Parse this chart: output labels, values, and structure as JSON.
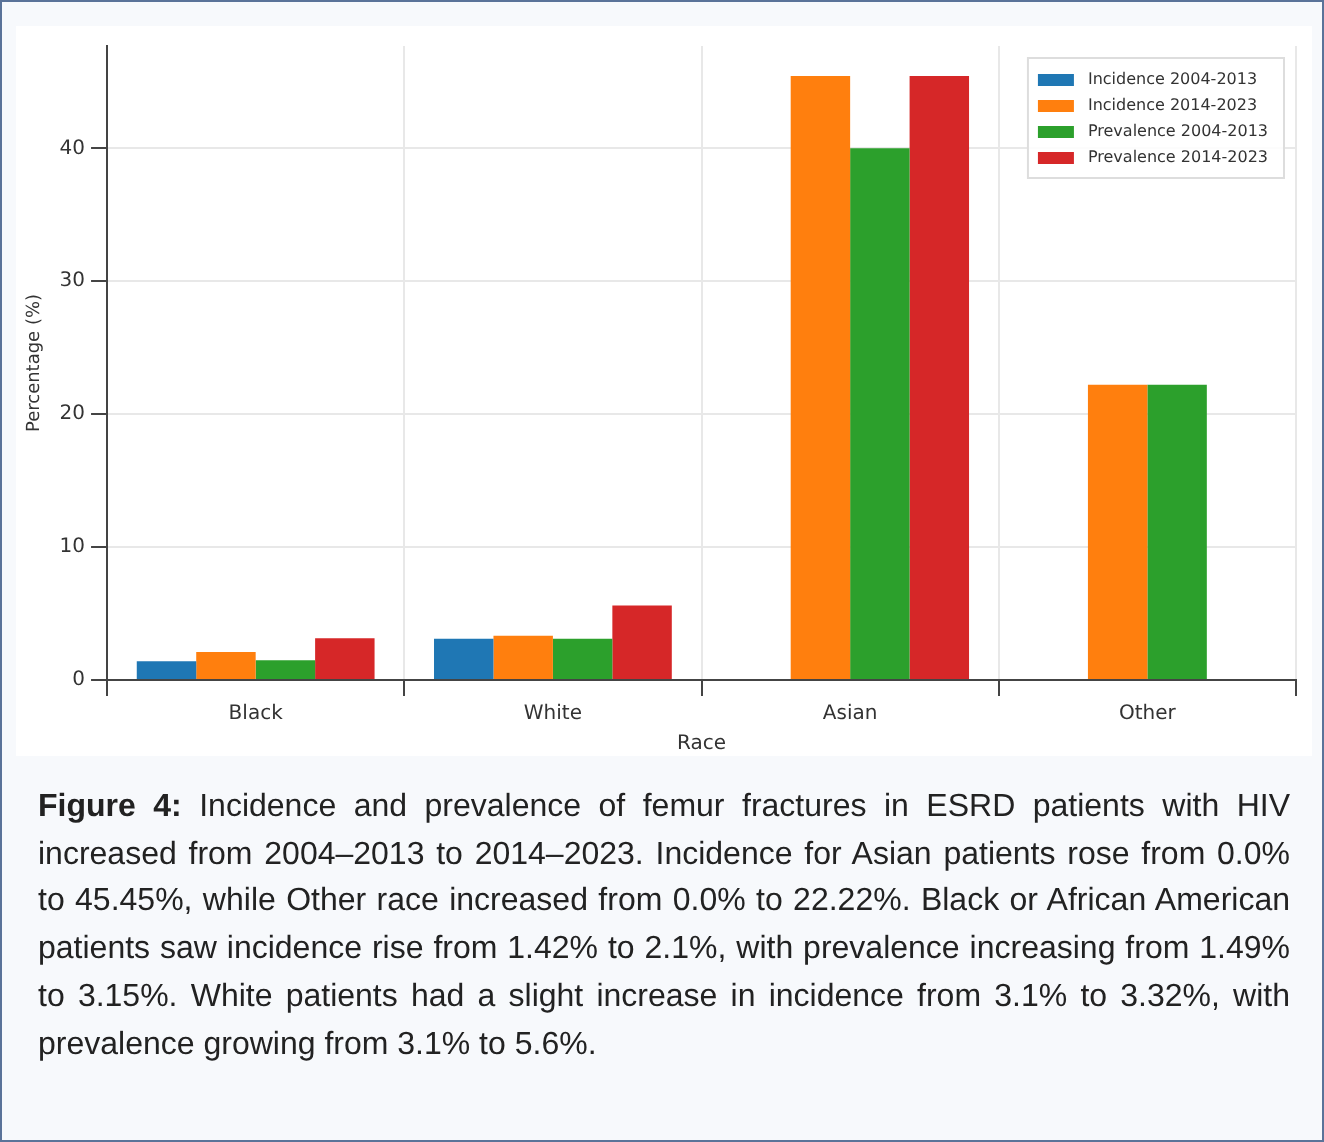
{
  "chart_data": {
    "type": "bar",
    "xlabel": "Race",
    "ylabel": "Percentage (%)",
    "categories": [
      "Black",
      "White",
      "Asian",
      "Other"
    ],
    "series": [
      {
        "name": "Incidence 2004-2013",
        "color": "#1f77b4",
        "values": [
          1.42,
          3.1,
          0,
          0
        ]
      },
      {
        "name": "Incidence 2014-2023",
        "color": "#ff7f0e",
        "values": [
          2.1,
          3.32,
          45.45,
          22.22
        ]
      },
      {
        "name": "Prevalence 2004-2013",
        "color": "#2ca02c",
        "values": [
          1.49,
          3.1,
          40,
          22.22
        ]
      },
      {
        "name": "Prevalence 2014-2023",
        "color": "#d62728",
        "values": [
          3.15,
          5.6,
          45.45,
          0
        ]
      }
    ],
    "ylim": [
      0,
      47.7
    ],
    "yticks": [
      0,
      10,
      20,
      30,
      40
    ],
    "grid": true,
    "legend": "top right",
    "annotations": [
      "Figure 4: Incidence and prevalence of femur fractures in ESRD patients with HIV increased from 2004–2013 to 2014–2023. Incidence for Asian patients rose from 0.0% to 45.45%, while Other race increased from 0.0% to 22.22%. Black or African American patients saw incidence rise from 1.42% to 2.1%, with prevalence increasing from 1.49% to 3.15%. White patients had a slight increase in incidence from 3.1% to 3.32%, with prevalence growing from 3.1% to 5.6%."
    ]
  }
}
